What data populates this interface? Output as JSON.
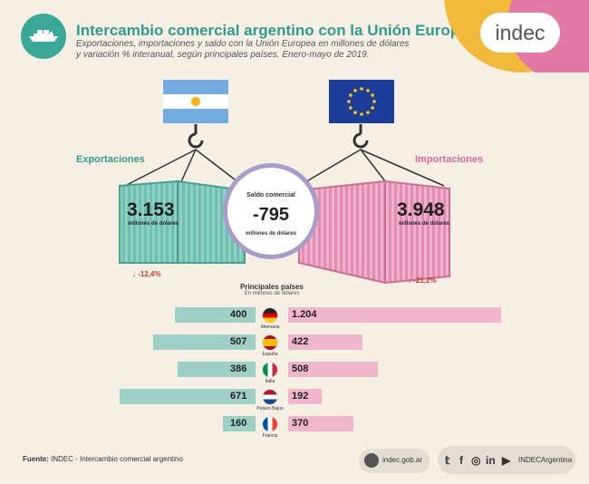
{
  "header": {
    "title": "Intercambio comercial argentino con la Unión Europea",
    "subtitle": "Exportaciones, importaciones y saldo con la Unión Europea en millones de dólares y variación % interanual, según principales países. Enero-mayo de 2019."
  },
  "brand": {
    "logo_text": "indec",
    "teal": "#3aa897",
    "yellow": "#f2ba3b",
    "pink": "#e27aa5"
  },
  "exports": {
    "label": "Exportaciones",
    "value": "3.153",
    "unit": "millones de dólares",
    "variation": "↓ -12,4%"
  },
  "imports": {
    "label": "Importaciones",
    "value": "3.948",
    "unit": "millones de dólares",
    "variation": "↓ -21,2%"
  },
  "balance": {
    "title": "Saldo comercial",
    "value": "-795",
    "unit": "millones de dólares"
  },
  "countries_section": {
    "title": "Principales países",
    "subtitle": "En millones de dólares"
  },
  "chart_data": {
    "type": "bar",
    "categories": [
      "Alemania",
      "España",
      "Italia",
      "Países Bajos",
      "Francia"
    ],
    "series": [
      {
        "name": "Exportaciones",
        "values": [
          400,
          507,
          386,
          671,
          160
        ],
        "labels": [
          "400",
          "507",
          "386",
          "671",
          "160"
        ]
      },
      {
        "name": "Importaciones",
        "values": [
          1204,
          422,
          508,
          192,
          370
        ],
        "labels": [
          "1.204",
          "422",
          "508",
          "192",
          "370"
        ]
      }
    ]
  },
  "footer": {
    "source_label": "Fuente:",
    "source_text": "INDEC - Intercambio comercial argentino",
    "website": "indec.gob.ar",
    "social_handle": "INDECArgentina",
    "social_icons": [
      "twitter-icon",
      "facebook-icon",
      "instagram-icon",
      "linkedin-icon",
      "youtube-icon"
    ]
  }
}
